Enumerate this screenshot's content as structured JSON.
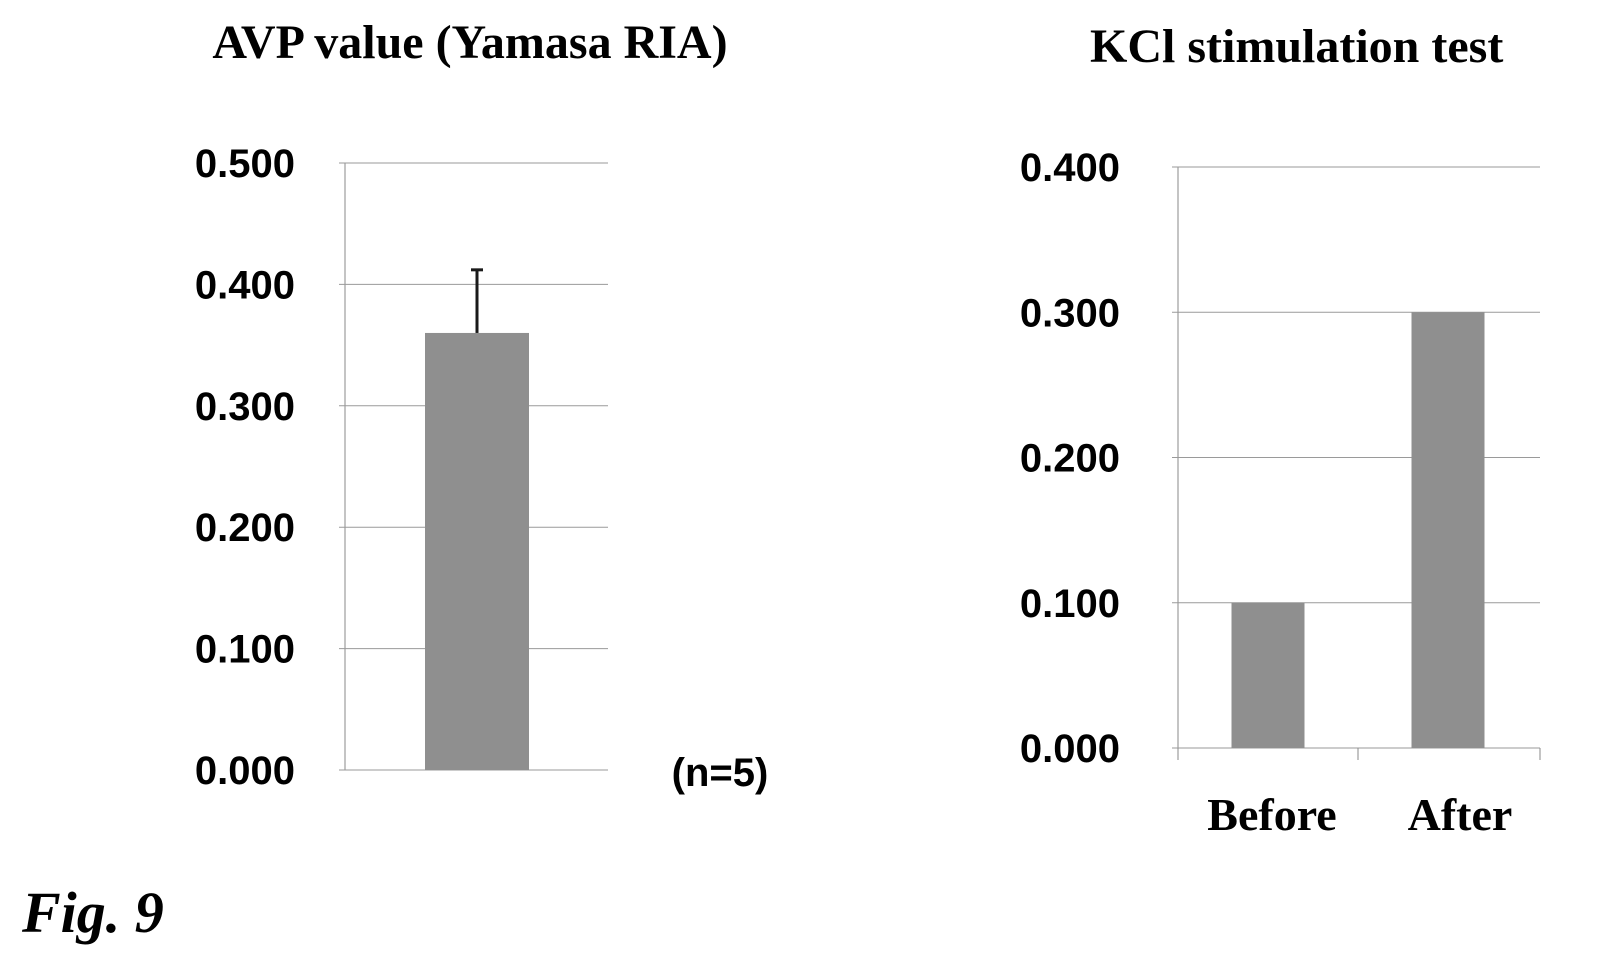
{
  "figure_label": "Fig. 9",
  "colors": {
    "bar_fill": "#8f8f8f",
    "gridline": "#9a9a9a",
    "text": "#000000"
  },
  "chart_data": [
    {
      "type": "bar",
      "title": "AVP value (Yamasa RIA)",
      "categories": [
        ""
      ],
      "values": [
        0.36
      ],
      "error": [
        0.052
      ],
      "ylim": [
        0,
        0.5
      ],
      "yticks": [
        "0.000",
        "0.100",
        "0.200",
        "0.300",
        "0.400",
        "0.500"
      ],
      "grid": true,
      "annotation": "(n=5)"
    },
    {
      "type": "bar",
      "title": "KCl stimulation test",
      "categories": [
        "Before",
        "After"
      ],
      "values": [
        0.1,
        0.3
      ],
      "ylim": [
        0,
        0.4
      ],
      "yticks": [
        "0.000",
        "0.100",
        "0.200",
        "0.300",
        "0.400"
      ],
      "grid": true
    }
  ]
}
